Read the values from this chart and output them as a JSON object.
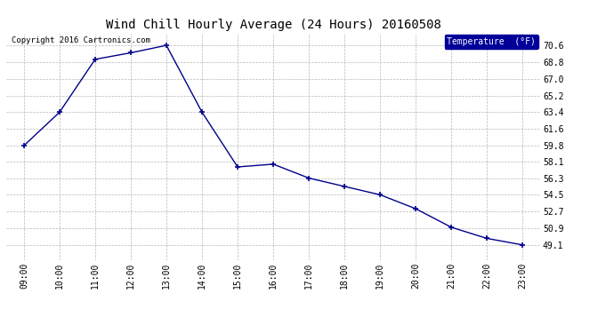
{
  "title": "Wind Chill Hourly Average (24 Hours) 20160508",
  "copyright": "Copyright 2016 Cartronics.com",
  "legend_label": "Temperature  (°F)",
  "x_labels": [
    "09:00",
    "10:00",
    "11:00",
    "12:00",
    "13:00",
    "14:00",
    "15:00",
    "16:00",
    "17:00",
    "18:00",
    "19:00",
    "20:00",
    "21:00",
    "22:00",
    "23:00"
  ],
  "y_values": [
    59.8,
    63.4,
    69.1,
    69.8,
    70.6,
    63.4,
    57.5,
    57.8,
    56.3,
    55.4,
    54.5,
    53.0,
    51.0,
    49.8,
    49.1
  ],
  "y_ticks": [
    49.1,
    50.9,
    52.7,
    54.5,
    56.3,
    58.1,
    59.8,
    61.6,
    63.4,
    65.2,
    67.0,
    68.8,
    70.6
  ],
  "ylim_min": 47.5,
  "ylim_max": 71.9,
  "line_color": "#00008B",
  "marker": "+",
  "marker_size": 5,
  "marker_edge_width": 1.2,
  "linewidth": 1.0,
  "background_color": "#ffffff",
  "plot_bg_color": "#ffffff",
  "grid_color": "#999999",
  "title_fontsize": 10,
  "tick_fontsize": 7,
  "copyright_fontsize": 6.5,
  "legend_bg_color": "#000099",
  "legend_text_color": "#ffffff",
  "legend_fontsize": 7
}
